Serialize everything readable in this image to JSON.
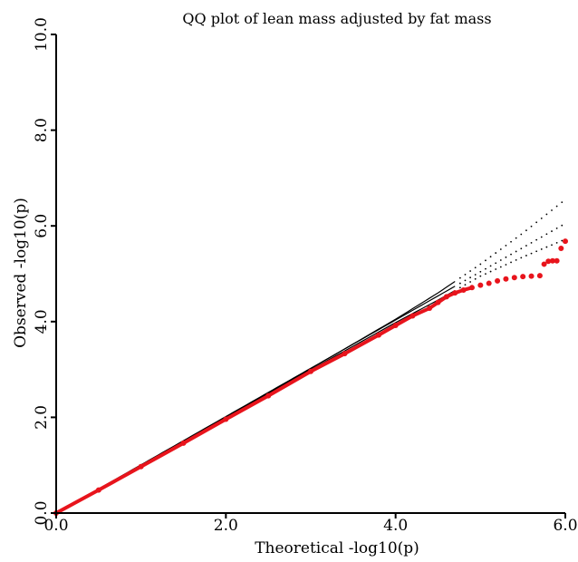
{
  "chart_data": {
    "type": "scatter",
    "title": "QQ plot of lean mass adjusted by fat mass",
    "xlabel": "Theoretical -log10(p)",
    "ylabel": "Observed -log10(p)",
    "xlim": [
      0.0,
      6.0
    ],
    "ylim": [
      0.0,
      10.0
    ],
    "x_ticks": [
      "0.0",
      "2.0",
      "4.0",
      "6.0"
    ],
    "y_ticks": [
      "0.0",
      "2.0",
      "4.0",
      "6.0",
      "8.0",
      "10.0"
    ],
    "grid": false,
    "legend": "none",
    "colors": {
      "observed": "#e8141c",
      "reference": "#000000"
    },
    "series": [
      {
        "role": "observed",
        "x": [
          0.0,
          0.5,
          1.0,
          1.5,
          2.0,
          2.5,
          3.0,
          3.4,
          3.8,
          4.0,
          4.2,
          4.4,
          4.5,
          4.6,
          4.7,
          4.8,
          4.9,
          5.0,
          5.1,
          5.2,
          5.3,
          5.4,
          5.5,
          5.6,
          5.7,
          5.75,
          5.8,
          5.85,
          5.9,
          5.95,
          6.0
        ],
        "y": [
          0.0,
          0.48,
          0.97,
          1.46,
          1.96,
          2.45,
          2.96,
          3.33,
          3.72,
          3.92,
          4.12,
          4.28,
          4.4,
          4.52,
          4.6,
          4.66,
          4.71,
          4.76,
          4.8,
          4.85,
          4.89,
          4.92,
          4.94,
          4.95,
          4.96,
          5.2,
          5.26,
          5.27,
          5.27,
          5.53,
          5.68
        ]
      },
      {
        "role": "expected",
        "x": [
          0.0,
          6.0
        ],
        "y": [
          0.0,
          6.05
        ]
      },
      {
        "role": "upper-bound",
        "x": [
          0.0,
          2.5,
          4.0,
          4.5,
          5.0,
          5.5,
          6.0
        ],
        "y": [
          0.0,
          2.5,
          4.05,
          4.6,
          5.2,
          5.85,
          6.55
        ]
      },
      {
        "role": "lower-bound",
        "x": [
          0.0,
          2.5,
          4.0,
          4.5,
          5.0,
          5.5,
          6.0
        ],
        "y": [
          0.0,
          2.5,
          3.98,
          4.45,
          4.95,
          5.35,
          5.72
        ]
      }
    ]
  }
}
